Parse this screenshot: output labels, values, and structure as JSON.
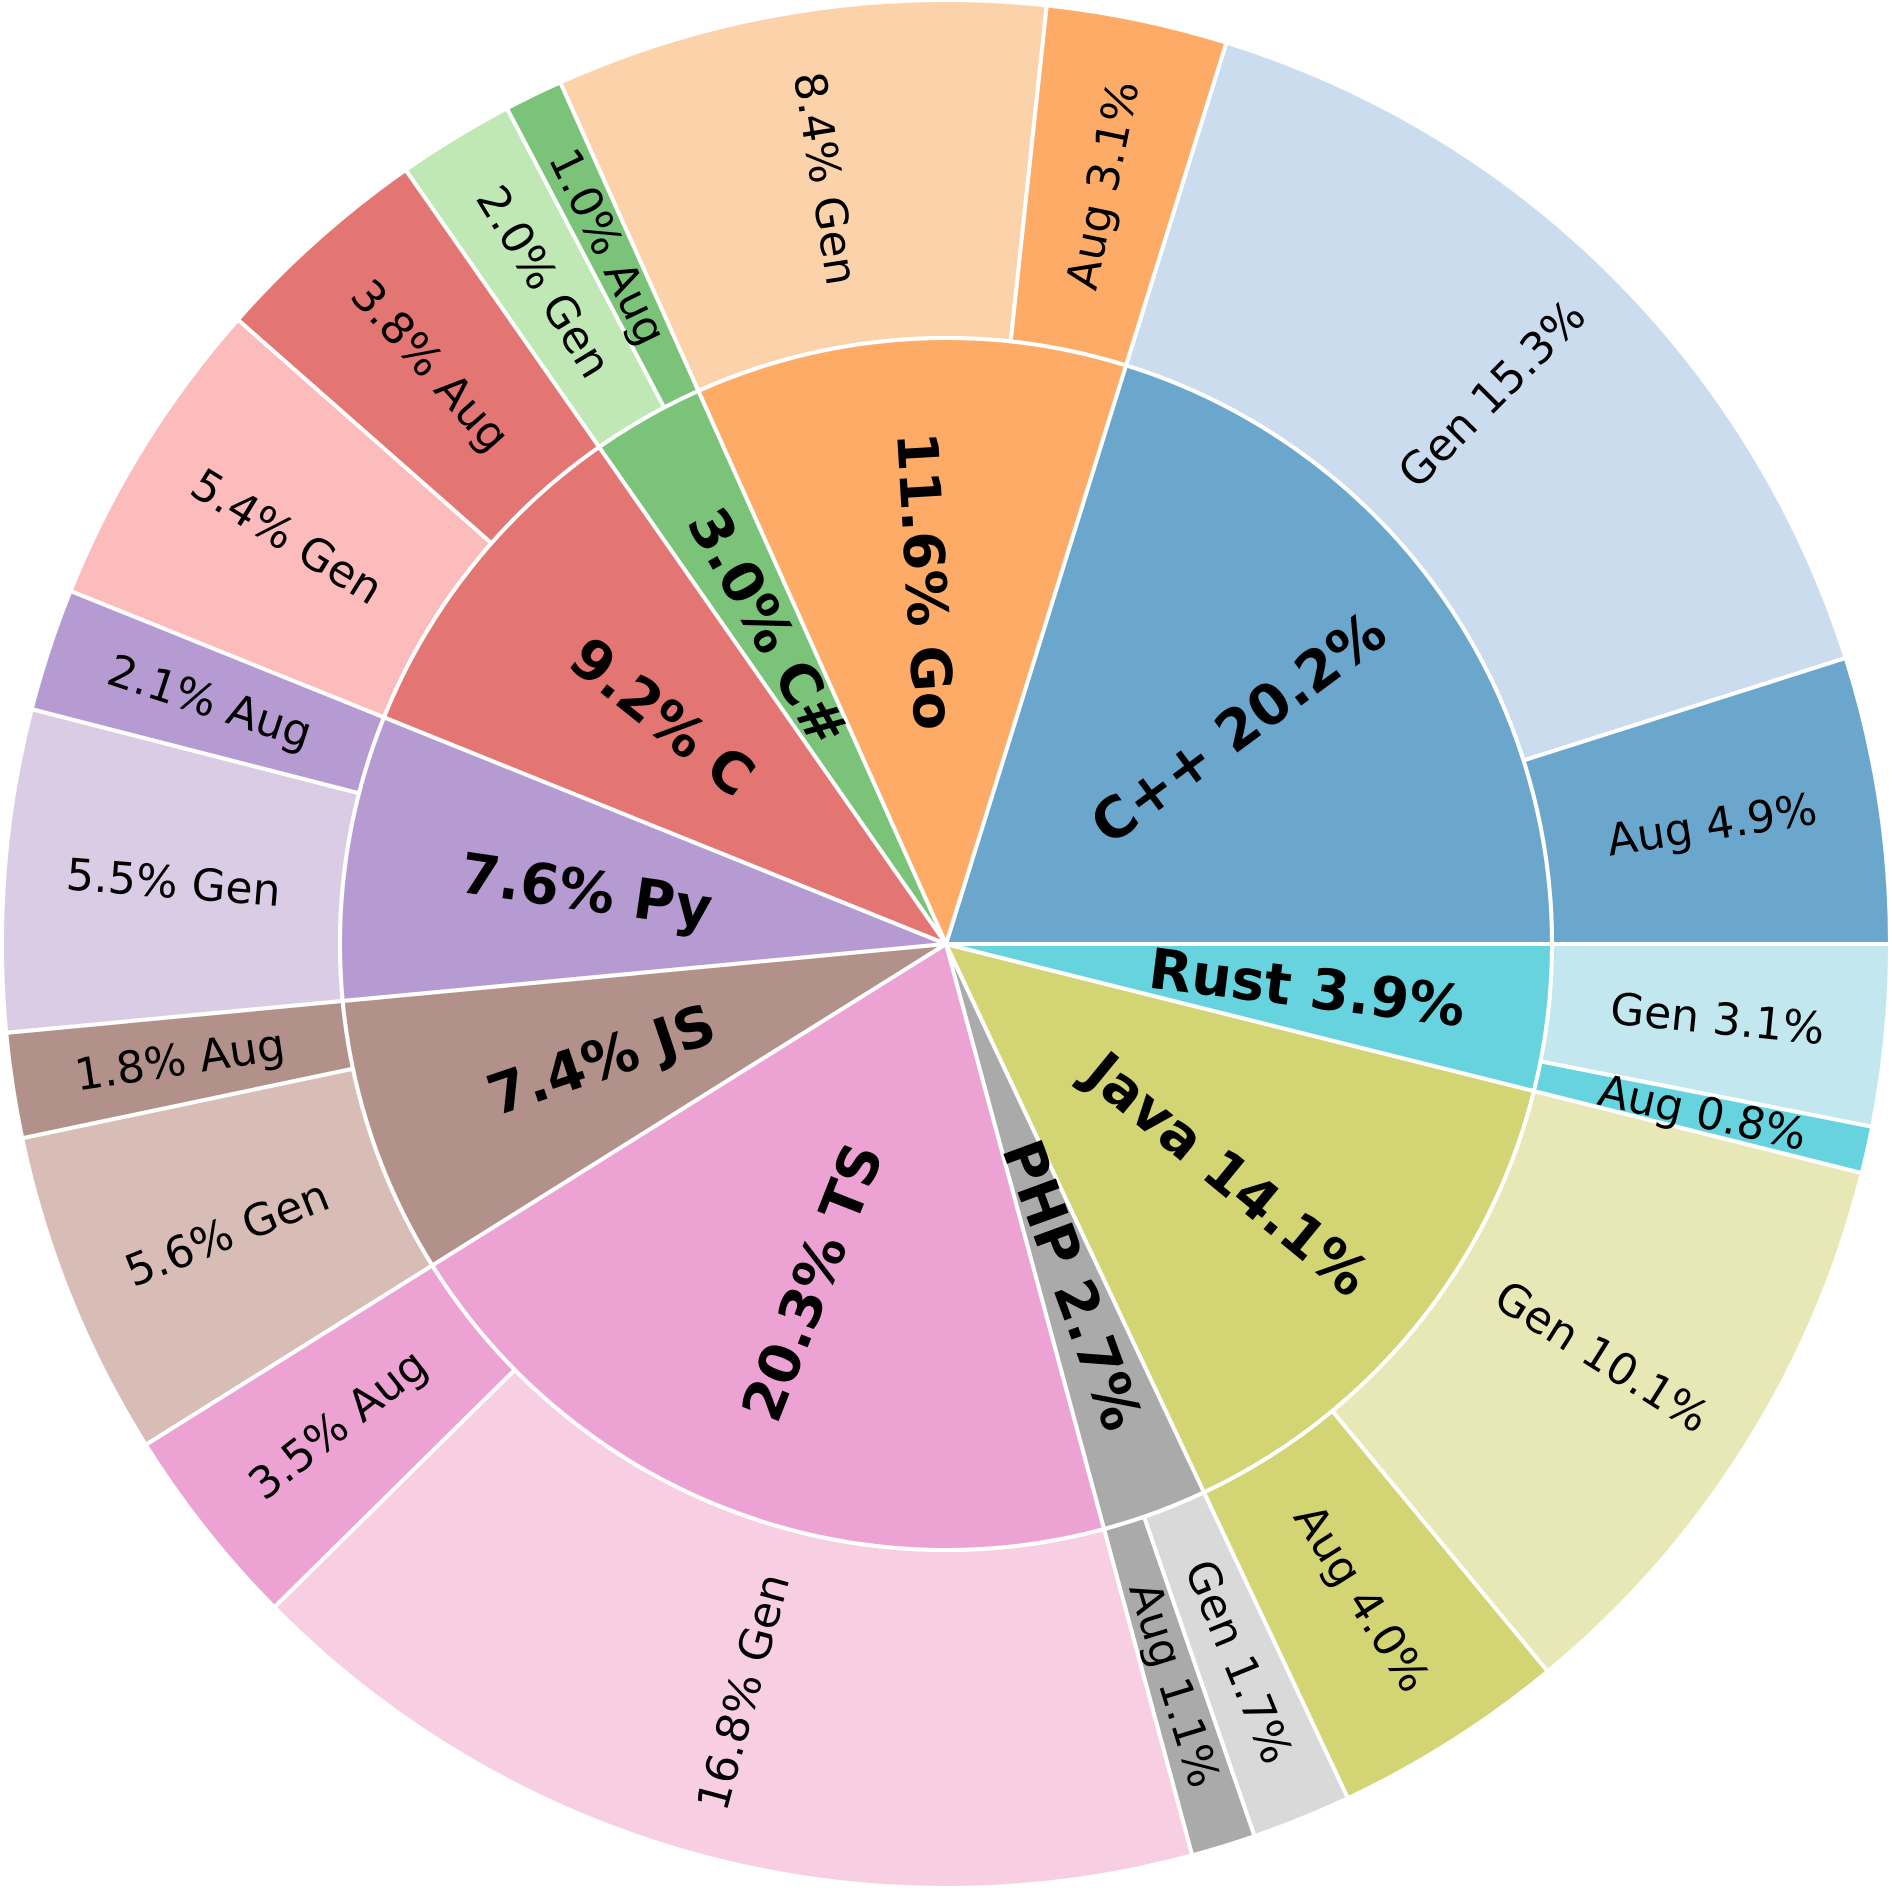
{
  "chart_data": {
    "type": "sunburst",
    "title": "",
    "start_angle_deg": 0,
    "direction": "counterclockwise",
    "languages": [
      {
        "code": "C++",
        "percent": 20.2,
        "label": "C++ 20.2%",
        "color": "#6ba7cd",
        "children": [
          {
            "name": "Aug",
            "percent": 4.9,
            "label": "Aug 4.9%",
            "color": "#6ba7cd"
          },
          {
            "name": "Gen",
            "percent": 15.3,
            "label": "Gen 15.3%",
            "color": "#cbdcef"
          }
        ]
      },
      {
        "code": "Go",
        "percent": 11.6,
        "label": "11.6% Go",
        "color": "#fdab66",
        "children": [
          {
            "name": "Aug",
            "percent": 3.1,
            "label": "Aug 3.1%",
            "color": "#fdab66"
          },
          {
            "name": "Gen",
            "percent": 8.4,
            "label": "8.4% Gen",
            "color": "#fcd2aa"
          }
        ]
      },
      {
        "code": "C#",
        "percent": 3.0,
        "label": "3.0% C#",
        "color": "#7cc37a",
        "children": [
          {
            "name": "Aug",
            "percent": 1.0,
            "label": "1.0% Aug",
            "color": "#7cc37a"
          },
          {
            "name": "Gen",
            "percent": 2.0,
            "label": "2.0% Gen",
            "color": "#bfe8b4"
          }
        ]
      },
      {
        "code": "C",
        "percent": 9.2,
        "label": "9.2% C",
        "color": "#e37573",
        "children": [
          {
            "name": "Aug",
            "percent": 3.8,
            "label": "3.8% Aug",
            "color": "#e37573"
          },
          {
            "name": "Gen",
            "percent": 5.4,
            "label": "5.4% Gen",
            "color": "#fcbcbc"
          }
        ]
      },
      {
        "code": "Py",
        "percent": 7.6,
        "label": "7.6% Py",
        "color": "#b69bd3",
        "children": [
          {
            "name": "Aug",
            "percent": 2.1,
            "label": "2.1% Aug",
            "color": "#b69bd3"
          },
          {
            "name": "Gen",
            "percent": 5.5,
            "label": "5.5% Gen",
            "color": "#dacce4"
          }
        ]
      },
      {
        "code": "JS",
        "percent": 7.4,
        "label": "7.4% JS",
        "color": "#b19189",
        "children": [
          {
            "name": "Aug",
            "percent": 1.8,
            "label": "1.8% Aug",
            "color": "#b19189"
          },
          {
            "name": "Gen",
            "percent": 5.6,
            "label": "5.6% Gen",
            "color": "#d8bdb6"
          }
        ]
      },
      {
        "code": "TS",
        "percent": 20.3,
        "label": "20.3% TS",
        "color": "#eca3d4",
        "children": [
          {
            "name": "Aug",
            "percent": 3.5,
            "label": "3.5% Aug",
            "color": "#eca3d4"
          },
          {
            "name": "Gen",
            "percent": 16.8,
            "label": "16.8% Gen",
            "color": "#f8cfe2"
          }
        ]
      },
      {
        "code": "PHP",
        "percent": 2.7,
        "label": "PHP 2.7%",
        "color": "#aaaaaa",
        "children": [
          {
            "name": "Aug",
            "percent": 1.1,
            "label": "Aug 1.1%",
            "color": "#aaaaaa"
          },
          {
            "name": "Gen",
            "percent": 1.7,
            "label": "Gen 1.7%",
            "color": "#d9d9d9"
          }
        ]
      },
      {
        "code": "Java",
        "percent": 14.1,
        "label": "Java 14.1%",
        "color": "#d3d473",
        "children": [
          {
            "name": "Aug",
            "percent": 4.0,
            "label": "Aug 4.0%",
            "color": "#d3d473"
          },
          {
            "name": "Gen",
            "percent": 10.1,
            "label": "Gen 10.1%",
            "color": "#e8e8b6"
          }
        ]
      },
      {
        "code": "Rust",
        "percent": 3.9,
        "label": "Rust 3.9%",
        "color": "#66d3de",
        "children": [
          {
            "name": "Aug",
            "percent": 0.8,
            "label": "Aug 0.8%",
            "color": "#66d3de"
          },
          {
            "name": "Gen",
            "percent": 3.1,
            "label": "Gen 3.1%",
            "color": "#c2e7ee"
          }
        ]
      }
    ]
  }
}
